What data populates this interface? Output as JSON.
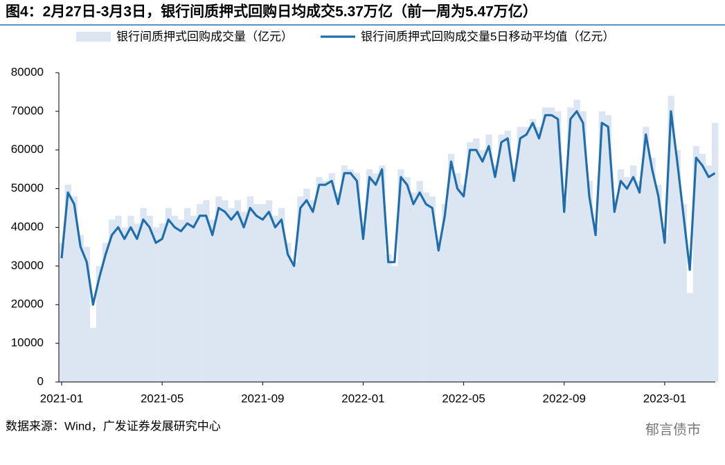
{
  "chart_data": {
    "type": "bar_line",
    "title": "图4：2月27日-3月3日，银行间质押式回购日均成交5.37万亿（前一周为5.47万亿）",
    "source": "数据来源：Wind，广发证券发展研究中心",
    "watermark": "郁言债市",
    "categories": [
      "2021-01",
      null,
      null,
      null,
      null,
      null,
      null,
      null,
      null,
      null,
      null,
      null,
      null,
      null,
      null,
      null,
      "2021-05",
      null,
      null,
      null,
      null,
      null,
      null,
      null,
      null,
      null,
      null,
      null,
      null,
      null,
      null,
      null,
      "2021-09",
      null,
      null,
      null,
      null,
      null,
      null,
      null,
      null,
      null,
      null,
      null,
      null,
      null,
      null,
      null,
      "2022-01",
      null,
      null,
      null,
      null,
      null,
      null,
      null,
      null,
      null,
      null,
      null,
      null,
      null,
      null,
      null,
      "2022-05",
      null,
      null,
      null,
      null,
      null,
      null,
      null,
      null,
      null,
      null,
      null,
      null,
      null,
      null,
      null,
      "2022-09",
      null,
      null,
      null,
      null,
      null,
      null,
      null,
      null,
      null,
      null,
      null,
      null,
      null,
      null,
      null,
      "2023-01",
      null,
      null,
      null,
      null,
      null,
      null,
      null,
      null
    ],
    "series": [
      {
        "name": "银行间质押式回购成交量（亿元）",
        "type": "bar",
        "color": "#dce6f2",
        "values": [
          36000,
          51000,
          48000,
          38000,
          35000,
          14000,
          30000,
          36000,
          42000,
          43000,
          40000,
          43000,
          41000,
          45000,
          43000,
          40000,
          41000,
          45000,
          43000,
          42000,
          45000,
          43000,
          46000,
          47000,
          42000,
          48000,
          47000,
          45000,
          47000,
          44000,
          48000,
          46000,
          46000,
          47000,
          43000,
          45000,
          36000,
          31000,
          48000,
          50000,
          47000,
          53000,
          52000,
          54000,
          49000,
          56000,
          55000,
          54000,
          40000,
          55000,
          54000,
          56000,
          33000,
          30000,
          55000,
          53000,
          49000,
          52000,
          49000,
          48000,
          36000,
          46000,
          59000,
          54000,
          51000,
          62000,
          63000,
          60000,
          64000,
          56000,
          64000,
          65000,
          55000,
          66000,
          66000,
          68000,
          66000,
          71000,
          71000,
          70000,
          47000,
          71000,
          73000,
          70000,
          52000,
          40000,
          70000,
          69000,
          47000,
          55000,
          53000,
          56000,
          52000,
          66000,
          58000,
          51000,
          38000,
          74000,
          60000,
          46000,
          23000,
          61000,
          59000,
          56000,
          67000
        ]
      },
      {
        "name": "银行间质押式回购成交量5日移动平均值（亿元）",
        "type": "line",
        "color": "#1f6eab",
        "values": [
          32000,
          49000,
          46000,
          35000,
          31000,
          20000,
          27000,
          33000,
          38000,
          40000,
          37000,
          40000,
          37000,
          42000,
          40000,
          36000,
          37000,
          42000,
          40000,
          39000,
          41000,
          40000,
          43000,
          43000,
          38000,
          45000,
          44000,
          42000,
          44000,
          40000,
          45000,
          43000,
          42000,
          44000,
          40000,
          42000,
          33000,
          30000,
          45000,
          47000,
          44000,
          51000,
          51000,
          52000,
          46000,
          54000,
          54000,
          52000,
          37000,
          53000,
          51000,
          55000,
          31000,
          31000,
          53000,
          51000,
          46000,
          49000,
          46000,
          45000,
          34000,
          43000,
          57000,
          50000,
          48000,
          60000,
          60000,
          57000,
          61000,
          53000,
          62000,
          63000,
          52000,
          63000,
          64000,
          67000,
          63000,
          69000,
          69000,
          68000,
          44000,
          68000,
          70000,
          67000,
          48000,
          38000,
          67000,
          66000,
          44000,
          52000,
          50000,
          53000,
          49000,
          64000,
          55000,
          48000,
          36000,
          70000,
          57000,
          43000,
          29000,
          58000,
          56000,
          53000,
          54000
        ]
      }
    ],
    "ylim": [
      0,
      80000
    ],
    "yticks": [
      0,
      10000,
      20000,
      30000,
      40000,
      50000,
      60000,
      70000,
      80000
    ]
  }
}
